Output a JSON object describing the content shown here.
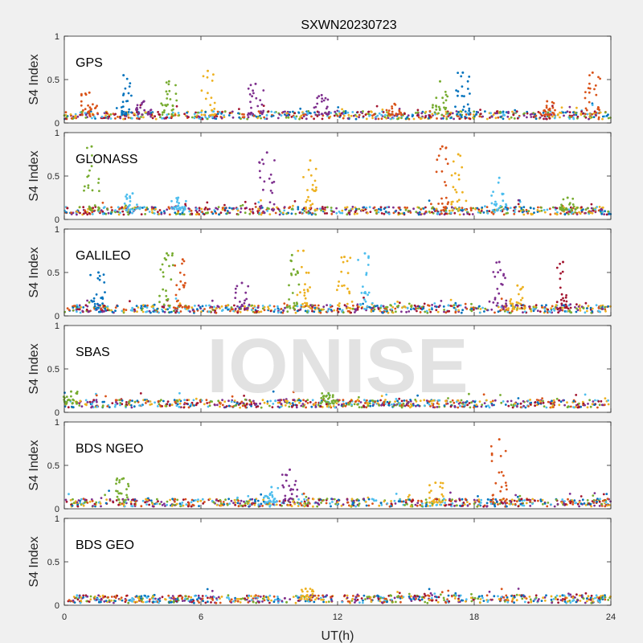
{
  "chart_data": {
    "type": "scatter",
    "title": "SXWN20230723",
    "xlabel": "UT(h)",
    "ylabel": "S4 Index",
    "xlim": [
      0,
      24
    ],
    "ylim": [
      0,
      1
    ],
    "xticks": [
      0,
      6,
      12,
      18,
      24
    ],
    "yticks": [
      0,
      0.5,
      1
    ],
    "ytick_labels": [
      "0",
      "0.5",
      "1"
    ],
    "watermark": "IONISE",
    "colors": [
      "#0072BD",
      "#D95319",
      "#EDB120",
      "#7E2F8E",
      "#77AC30",
      "#4DBEEE",
      "#A2142F"
    ],
    "panels": [
      {
        "name": "GPS",
        "baseline": 0.09,
        "bursts": [
          {
            "x": 1.1,
            "peak": 0.35,
            "color": 1
          },
          {
            "x": 2.6,
            "peak": 0.55,
            "color": 0
          },
          {
            "x": 3.5,
            "peak": 0.25,
            "color": 3
          },
          {
            "x": 4.6,
            "peak": 0.48,
            "color": 4
          },
          {
            "x": 6.3,
            "peak": 0.6,
            "color": 2
          },
          {
            "x": 8.4,
            "peak": 0.45,
            "color": 3
          },
          {
            "x": 11.3,
            "peak": 0.32,
            "color": 3
          },
          {
            "x": 14.5,
            "peak": 0.22,
            "color": 1
          },
          {
            "x": 16.5,
            "peak": 0.48,
            "color": 4
          },
          {
            "x": 17.5,
            "peak": 0.58,
            "color": 0
          },
          {
            "x": 21.2,
            "peak": 0.25,
            "color": 1
          },
          {
            "x": 23.2,
            "peak": 0.58,
            "color": 1
          }
        ]
      },
      {
        "name": "GLONASS",
        "baseline": 0.1,
        "bursts": [
          {
            "x": 1.2,
            "peak": 0.84,
            "color": 4
          },
          {
            "x": 3.0,
            "peak": 0.3,
            "color": 5
          },
          {
            "x": 5.0,
            "peak": 0.25,
            "color": 5
          },
          {
            "x": 8.9,
            "peak": 0.77,
            "color": 3
          },
          {
            "x": 10.8,
            "peak": 0.68,
            "color": 2
          },
          {
            "x": 16.6,
            "peak": 0.84,
            "color": 1
          },
          {
            "x": 17.3,
            "peak": 0.75,
            "color": 2
          },
          {
            "x": 19.1,
            "peak": 0.48,
            "color": 5
          },
          {
            "x": 22.1,
            "peak": 0.25,
            "color": 4
          }
        ]
      },
      {
        "name": "GALILEO",
        "baseline": 0.08,
        "bursts": [
          {
            "x": 1.5,
            "peak": 0.5,
            "color": 0
          },
          {
            "x": 4.5,
            "peak": 0.72,
            "color": 4
          },
          {
            "x": 5.2,
            "peak": 0.65,
            "color": 1
          },
          {
            "x": 7.8,
            "peak": 0.38,
            "color": 3
          },
          {
            "x": 10.0,
            "peak": 0.7,
            "color": 4
          },
          {
            "x": 10.5,
            "peak": 0.75,
            "color": 2
          },
          {
            "x": 12.3,
            "peak": 0.68,
            "color": 2
          },
          {
            "x": 13.2,
            "peak": 0.72,
            "color": 5
          },
          {
            "x": 19.1,
            "peak": 0.62,
            "color": 3
          },
          {
            "x": 19.9,
            "peak": 0.35,
            "color": 2
          },
          {
            "x": 21.9,
            "peak": 0.62,
            "color": 6
          }
        ]
      },
      {
        "name": "SBAS",
        "baseline": 0.1,
        "bursts": [
          {
            "x": 0.3,
            "peak": 0.24,
            "color": 4
          },
          {
            "x": 11.6,
            "peak": 0.22,
            "color": 4
          }
        ]
      },
      {
        "name": "BDS NGEO",
        "baseline": 0.07,
        "bursts": [
          {
            "x": 2.6,
            "peak": 0.35,
            "color": 4
          },
          {
            "x": 9.9,
            "peak": 0.45,
            "color": 3
          },
          {
            "x": 9.1,
            "peak": 0.25,
            "color": 5
          },
          {
            "x": 16.3,
            "peak": 0.3,
            "color": 2
          },
          {
            "x": 19.1,
            "peak": 0.8,
            "color": 1
          }
        ]
      },
      {
        "name": "BDS GEO",
        "baseline": 0.07,
        "bursts": [
          {
            "x": 10.6,
            "peak": 0.19,
            "color": 2
          }
        ]
      }
    ]
  }
}
